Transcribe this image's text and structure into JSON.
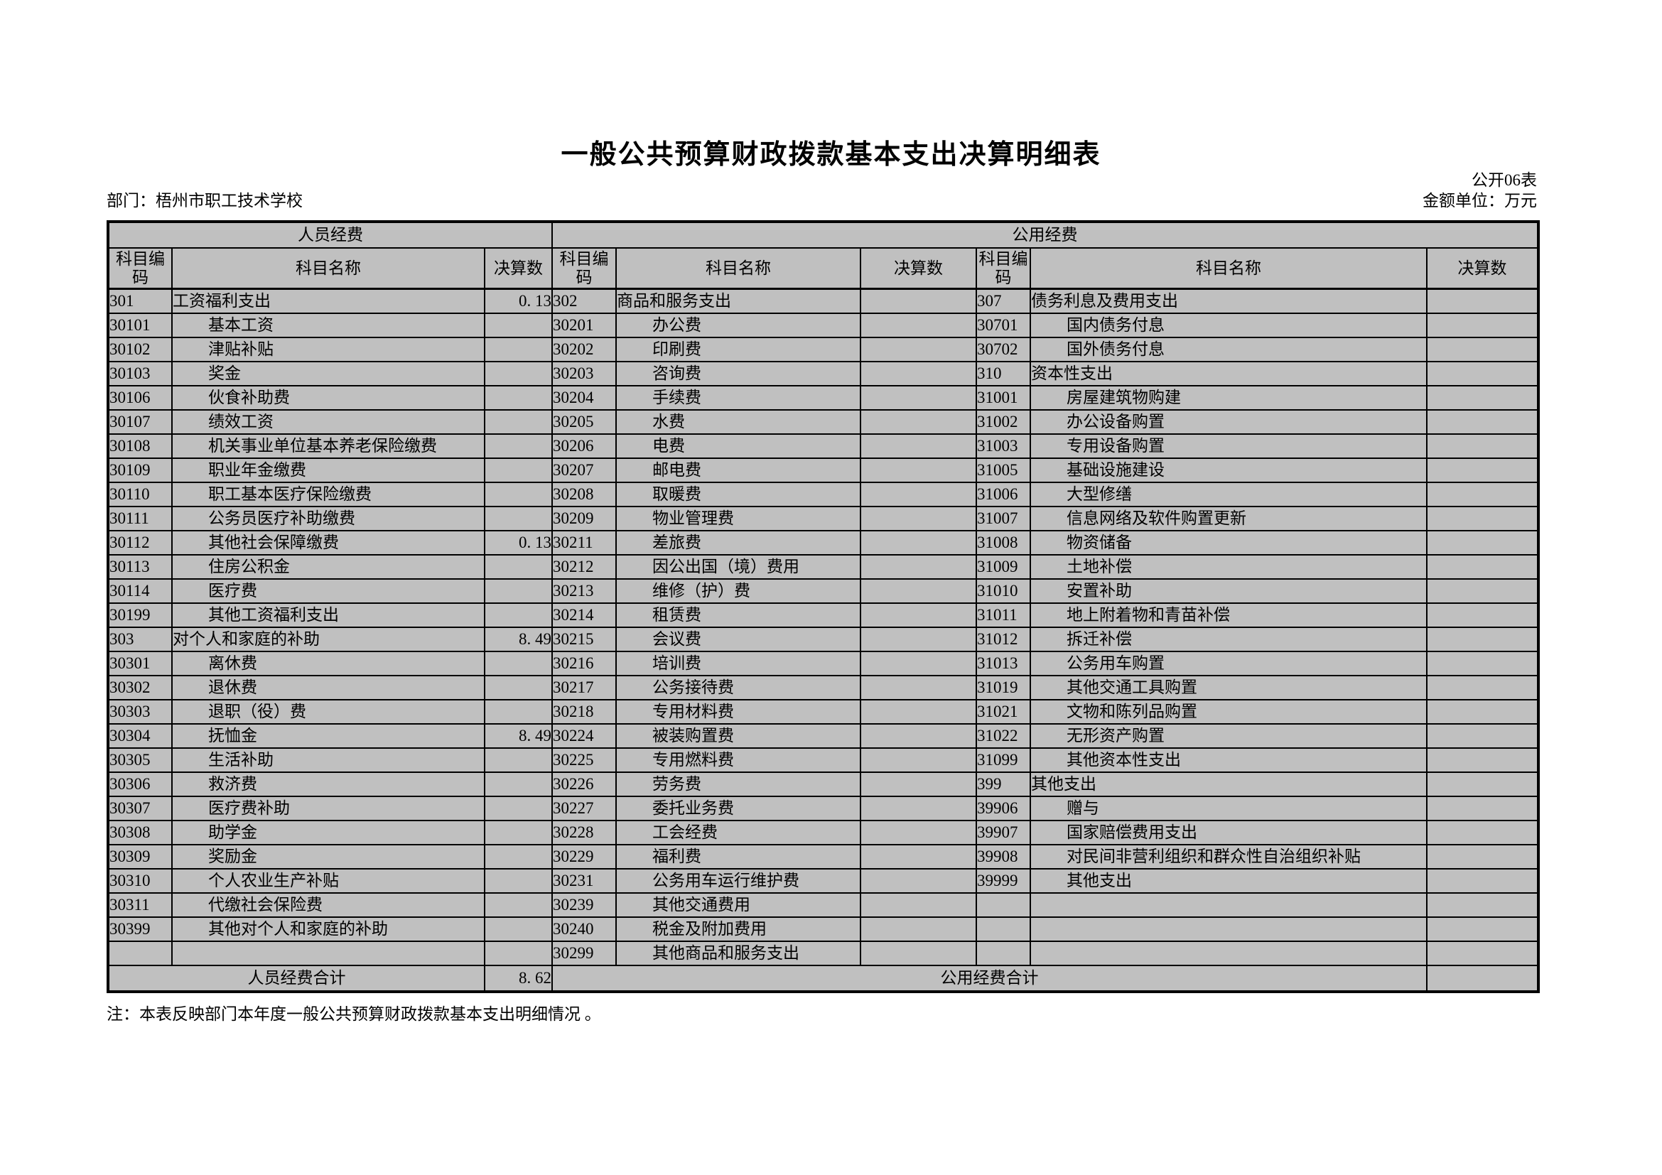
{
  "page": {
    "title": "一般公共预算财政拨款基本支出决算明细表",
    "table_code": "公开06表",
    "department_label": "部门：梧州市职工技术学校",
    "unit_label": "金额单位：万元",
    "note": "注：本表反映部门本年度一般公共预算财政拨款基本支出明细情况 。"
  },
  "colors": {
    "cell_gray": "#c0c0c0",
    "cell_white": "#ffffff",
    "border": "#000000"
  },
  "table": {
    "group_headers": [
      "人员经费",
      "公用经费"
    ],
    "column_headers": [
      "科目编码",
      "科目名称",
      "决算数"
    ],
    "personnel": {
      "rows": [
        [
          "301",
          "工资福利支出",
          "0. 13"
        ],
        [
          "30101",
          "基本工资",
          ""
        ],
        [
          "30102",
          "津贴补贴",
          ""
        ],
        [
          "30103",
          "奖金",
          ""
        ],
        [
          "30106",
          "伙食补助费",
          ""
        ],
        [
          "30107",
          "绩效工资",
          ""
        ],
        [
          "30108",
          "机关事业单位基本养老保险缴费",
          ""
        ],
        [
          "30109",
          "职业年金缴费",
          ""
        ],
        [
          "30110",
          "职工基本医疗保险缴费",
          ""
        ],
        [
          "30111",
          "公务员医疗补助缴费",
          ""
        ],
        [
          "30112",
          "其他社会保障缴费",
          "0. 13"
        ],
        [
          "30113",
          "住房公积金",
          ""
        ],
        [
          "30114",
          "医疗费",
          ""
        ],
        [
          "30199",
          "其他工资福利支出",
          ""
        ],
        [
          "303",
          "对个人和家庭的补助",
          "8. 49"
        ],
        [
          "30301",
          "离休费",
          ""
        ],
        [
          "30302",
          "退休费",
          ""
        ],
        [
          "30303",
          "退职（役）费",
          ""
        ],
        [
          "30304",
          "抚恤金",
          "8. 49"
        ],
        [
          "30305",
          "生活补助",
          ""
        ],
        [
          "30306",
          "救济费",
          ""
        ],
        [
          "30307",
          "医疗费补助",
          ""
        ],
        [
          "30308",
          "助学金",
          ""
        ],
        [
          "30309",
          "奖励金",
          ""
        ],
        [
          "30310",
          "个人农业生产补贴",
          ""
        ],
        [
          "30311",
          "代缴社会保险费",
          ""
        ],
        [
          "30399",
          "其他对个人和家庭的补助",
          ""
        ],
        [
          "",
          "",
          ""
        ]
      ],
      "total_label": "人员经费合计",
      "total_value": "8. 62"
    },
    "public_left": {
      "rows": [
        [
          "302",
          "商品和服务支出",
          ""
        ],
        [
          "30201",
          "办公费",
          ""
        ],
        [
          "30202",
          "印刷费",
          ""
        ],
        [
          "30203",
          "咨询费",
          ""
        ],
        [
          "30204",
          "手续费",
          ""
        ],
        [
          "30205",
          "水费",
          ""
        ],
        [
          "30206",
          "电费",
          ""
        ],
        [
          "30207",
          "邮电费",
          ""
        ],
        [
          "30208",
          "取暖费",
          ""
        ],
        [
          "30209",
          "物业管理费",
          ""
        ],
        [
          "30211",
          "差旅费",
          ""
        ],
        [
          "30212",
          "因公出国（境）费用",
          ""
        ],
        [
          "30213",
          "维修（护）费",
          ""
        ],
        [
          "30214",
          "租赁费",
          ""
        ],
        [
          "30215",
          "会议费",
          ""
        ],
        [
          "30216",
          "培训费",
          ""
        ],
        [
          "30217",
          "公务接待费",
          ""
        ],
        [
          "30218",
          "专用材料费",
          ""
        ],
        [
          "30224",
          "被装购置费",
          ""
        ],
        [
          "30225",
          "专用燃料费",
          ""
        ],
        [
          "30226",
          "劳务费",
          ""
        ],
        [
          "30227",
          "委托业务费",
          ""
        ],
        [
          "30228",
          "工会经费",
          ""
        ],
        [
          "30229",
          "福利费",
          ""
        ],
        [
          "30231",
          "公务用车运行维护费",
          ""
        ],
        [
          "30239",
          "其他交通费用",
          ""
        ],
        [
          "30240",
          "税金及附加费用",
          ""
        ],
        [
          "30299",
          "其他商品和服务支出",
          ""
        ]
      ]
    },
    "public_right": {
      "rows": [
        [
          "307",
          "债务利息及费用支出",
          ""
        ],
        [
          "30701",
          "国内债务付息",
          ""
        ],
        [
          "30702",
          "国外债务付息",
          ""
        ],
        [
          "310",
          "资本性支出",
          ""
        ],
        [
          "31001",
          "房屋建筑物购建",
          ""
        ],
        [
          "31002",
          "办公设备购置",
          ""
        ],
        [
          "31003",
          "专用设备购置",
          ""
        ],
        [
          "31005",
          "基础设施建设",
          ""
        ],
        [
          "31006",
          "大型修缮",
          ""
        ],
        [
          "31007",
          "信息网络及软件购置更新",
          ""
        ],
        [
          "31008",
          "物资储备",
          ""
        ],
        [
          "31009",
          "土地补偿",
          ""
        ],
        [
          "31010",
          "安置补助",
          ""
        ],
        [
          "31011",
          "地上附着物和青苗补偿",
          ""
        ],
        [
          "31012",
          "拆迁补偿",
          ""
        ],
        [
          "31013",
          "公务用车购置",
          ""
        ],
        [
          "31019",
          "其他交通工具购置",
          ""
        ],
        [
          "31021",
          "文物和陈列品购置",
          ""
        ],
        [
          "31022",
          "无形资产购置",
          ""
        ],
        [
          "31099",
          "其他资本性支出",
          ""
        ],
        [
          "399",
          "其他支出",
          ""
        ],
        [
          "39906",
          "赠与",
          ""
        ],
        [
          "39907",
          "国家赔偿费用支出",
          ""
        ],
        [
          "39908",
          "对民间非营利组织和群众性自治组织补贴",
          ""
        ],
        [
          "39999",
          "其他支出",
          ""
        ],
        [
          "",
          "",
          ""
        ],
        [
          "",
          "",
          ""
        ],
        [
          "",
          "",
          ""
        ]
      ]
    },
    "public_total_label": "公用经费合计",
    "public_total_value": ""
  }
}
